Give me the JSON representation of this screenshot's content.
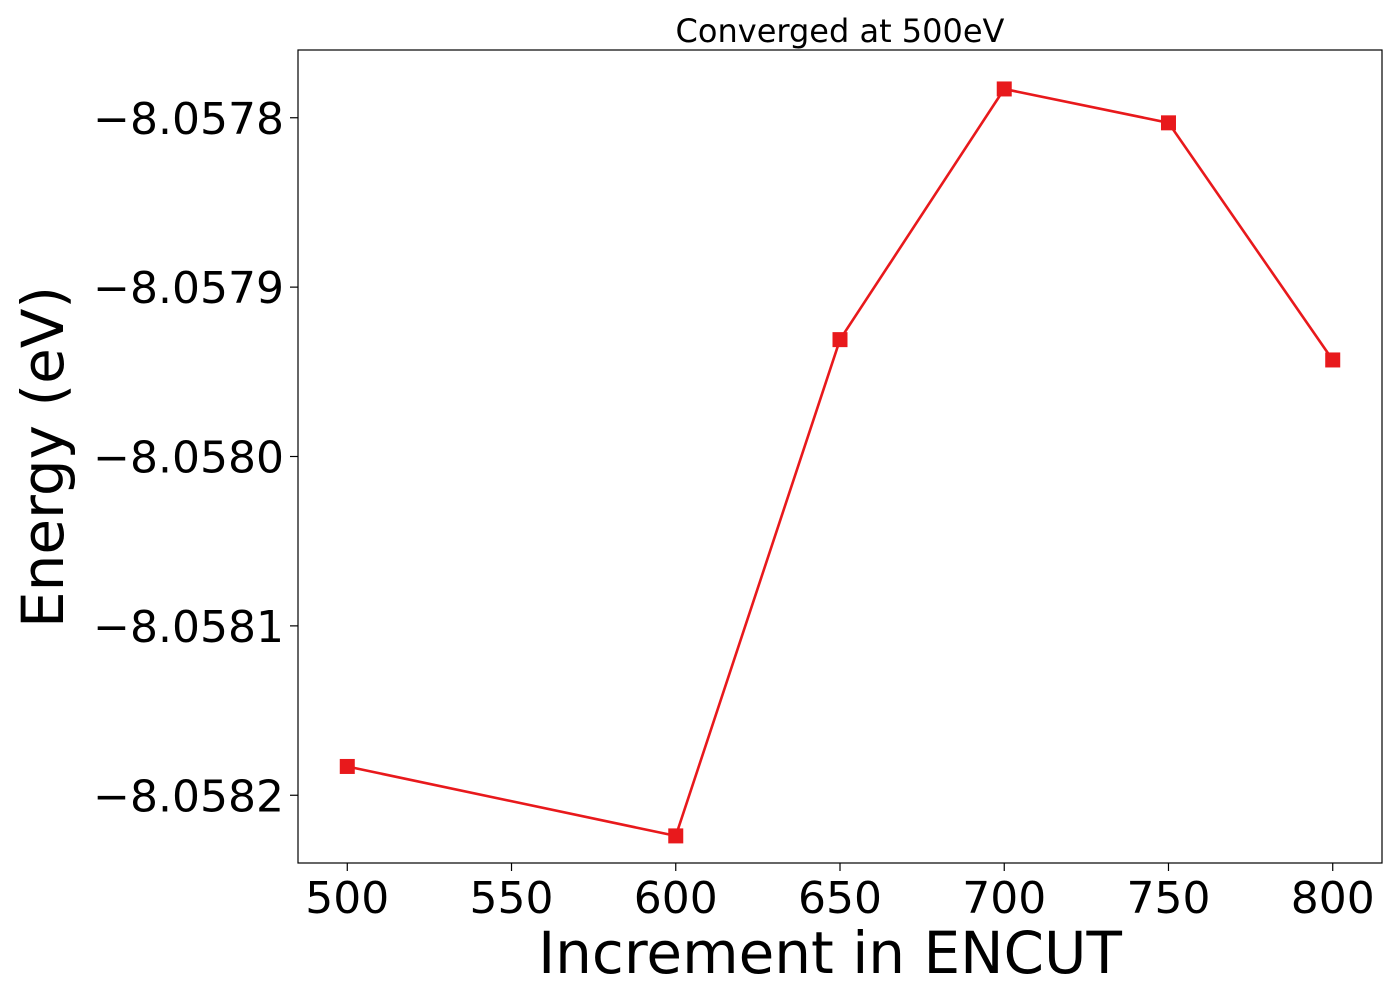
{
  "chart_data": {
    "type": "line",
    "title": "Converged at 500eV",
    "xlabel": "Increment in ENCUT",
    "ylabel": "Energy (eV)",
    "xlim": [
      485,
      815
    ],
    "ylim": [
      -8.05824,
      -8.05776
    ],
    "xticks": [
      500,
      550,
      600,
      650,
      700,
      750,
      800
    ],
    "xtick_labels": [
      "500",
      "550",
      "600",
      "650",
      "700",
      "750",
      "800"
    ],
    "yticks": [
      -8.0582,
      -8.0581,
      -8.058,
      -8.0579,
      -8.0578
    ],
    "ytick_labels": [
      "−8.0582",
      "−8.0581",
      "−8.0580",
      "−8.0579",
      "−8.0578"
    ],
    "grid": false,
    "legend": "none",
    "series": [
      {
        "color": "#e8191c",
        "marker": "square",
        "x": [
          500,
          600,
          650,
          700,
          750,
          800
        ],
        "y": [
          -8.058183,
          -8.058224,
          -8.057931,
          -8.057783,
          -8.057803,
          -8.057943
        ]
      }
    ]
  }
}
